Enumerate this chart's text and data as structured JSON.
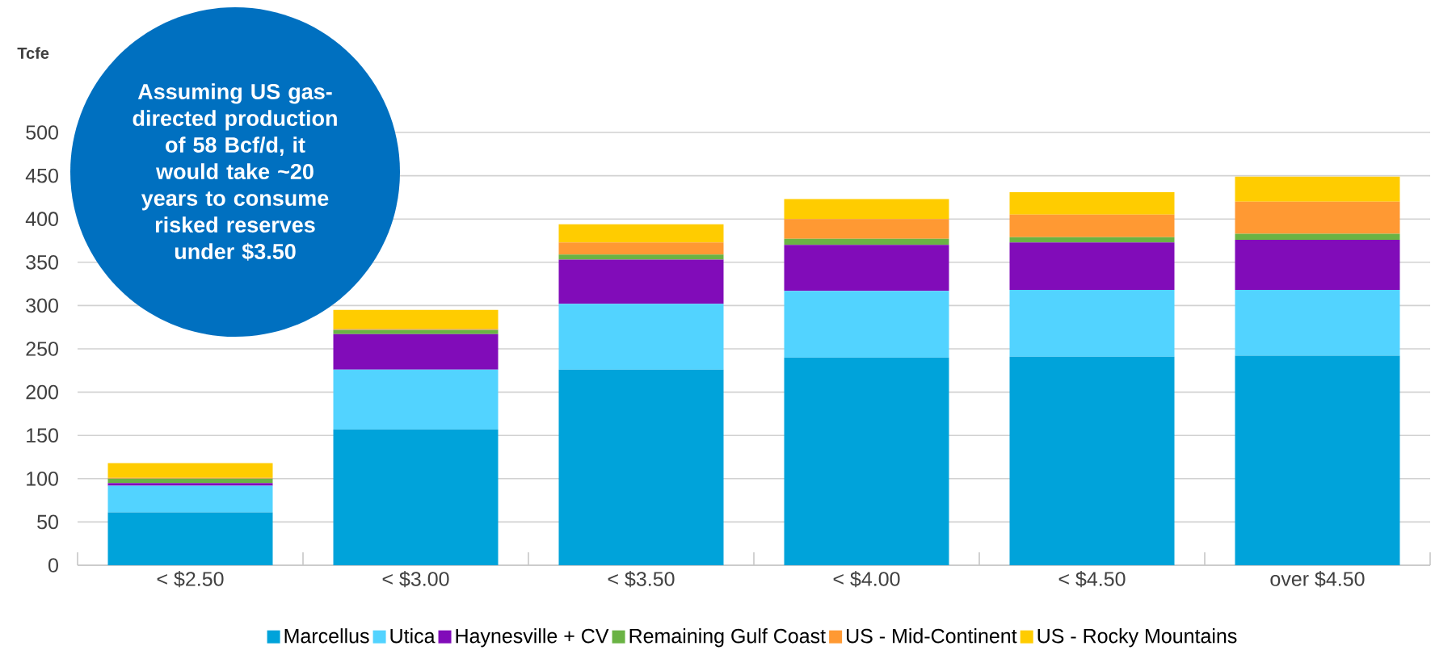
{
  "chart_data": {
    "type": "bar",
    "stacked": true,
    "ylabel": "Tcfe",
    "annotations": [
      "Assuming US gas-directed production of 58 Bcf/d, it would take ~20 years to consume risked reserves under $3.50"
    ],
    "categories": [
      "< $2.50",
      "< $3.00",
      "< $3.50",
      "< $4.00",
      "< $4.50",
      "over $4.50"
    ],
    "series": [
      {
        "name": "Marcellus",
        "color": "#00a3da",
        "values": [
          61,
          157,
          226,
          240,
          241,
          242
        ]
      },
      {
        "name": "Utica",
        "color": "#52d3ff",
        "values": [
          31,
          69,
          76,
          77,
          77,
          76
        ]
      },
      {
        "name": "Haynesville + CV",
        "color": "#810cb9",
        "values": [
          3,
          41,
          51,
          53,
          55,
          58
        ]
      },
      {
        "name": "Remaining Gulf Coast",
        "color": "#6ab344",
        "values": [
          5,
          5,
          6,
          7,
          6,
          7
        ]
      },
      {
        "name": "US - Mid-Continent",
        "color": "#ff9933",
        "values": [
          1,
          1,
          14,
          23,
          26,
          37
        ]
      },
      {
        "name": "US - Rocky Mountains",
        "color": "#ffcc00",
        "values": [
          17,
          22,
          21,
          23,
          26,
          29
        ]
      }
    ],
    "ylim": [
      0,
      500
    ],
    "yticks": [
      0,
      50,
      100,
      150,
      200,
      250,
      300,
      350,
      400,
      450,
      500
    ],
    "grid": "y",
    "legend": "bottom"
  }
}
